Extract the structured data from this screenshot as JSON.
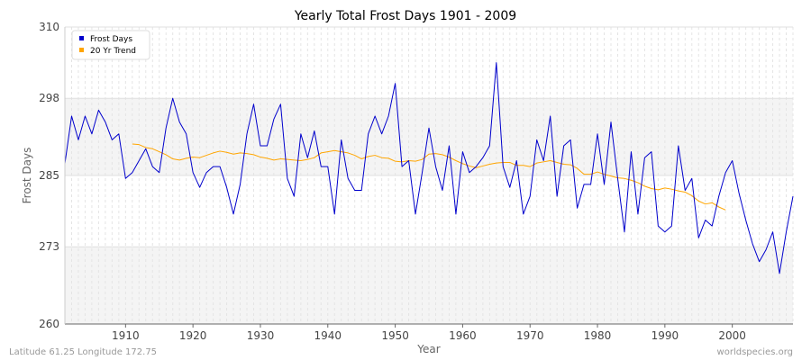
{
  "chart_data": {
    "type": "line",
    "title": "Yearly Total Frost Days 1901 - 2009",
    "xlabel": "Year",
    "ylabel": "Frost Days",
    "xlim": [
      1901,
      2009
    ],
    "ylim": [
      260,
      310
    ],
    "xticks": [
      1910,
      1920,
      1930,
      1940,
      1950,
      1960,
      1970,
      1980,
      1990,
      2000
    ],
    "yticks": [
      260,
      273,
      285,
      298,
      310
    ],
    "grid": true,
    "legend_position": "top-left",
    "series": [
      {
        "name": "Frost Days",
        "color": "#0000cc",
        "x": [
          1901,
          1902,
          1903,
          1904,
          1905,
          1906,
          1907,
          1908,
          1909,
          1910,
          1911,
          1912,
          1913,
          1914,
          1915,
          1916,
          1917,
          1918,
          1919,
          1920,
          1921,
          1922,
          1923,
          1924,
          1925,
          1926,
          1927,
          1928,
          1929,
          1930,
          1931,
          1932,
          1933,
          1934,
          1935,
          1936,
          1937,
          1938,
          1939,
          1940,
          1941,
          1942,
          1943,
          1944,
          1945,
          1946,
          1947,
          1948,
          1949,
          1950,
          1951,
          1952,
          1953,
          1954,
          1955,
          1956,
          1957,
          1958,
          1959,
          1960,
          1961,
          1962,
          1963,
          1964,
          1965,
          1966,
          1967,
          1968,
          1969,
          1970,
          1971,
          1972,
          1973,
          1974,
          1975,
          1976,
          1977,
          1978,
          1979,
          1980,
          1981,
          1982,
          1983,
          1984,
          1985,
          1986,
          1987,
          1988,
          1989,
          1990,
          1991,
          1992,
          1993,
          1994,
          1995,
          1996,
          1997,
          1998,
          1999,
          2000,
          2001,
          2002,
          2003,
          2004,
          2005,
          2006,
          2007,
          2008,
          2009
        ],
        "y": [
          287,
          295,
          291,
          295,
          292,
          296,
          294,
          291,
          292,
          284.5,
          285.5,
          287.5,
          289.5,
          286.5,
          285.5,
          293,
          298,
          294,
          292,
          285.5,
          283,
          285.5,
          286.5,
          286.5,
          283,
          278.5,
          283.5,
          292,
          297,
          290,
          290,
          294.5,
          297,
          284.5,
          281.5,
          292,
          288,
          292.5,
          286.5,
          286.5,
          278.5,
          291,
          284.5,
          282.5,
          282.5,
          292,
          295,
          292,
          295,
          300.5,
          286.5,
          287.5,
          278.5,
          285.5,
          293,
          286.5,
          282.5,
          290,
          278.5,
          289,
          285.5,
          286.5,
          288,
          290,
          304,
          286.5,
          283,
          287.5,
          278.5,
          281.5,
          291,
          287.5,
          295,
          281.5,
          290,
          291,
          279.5,
          283.5,
          283.5,
          292,
          283.5,
          294,
          284.5,
          275.5,
          289,
          278.5,
          288,
          289,
          276.5,
          275.5,
          276.5,
          290,
          282.5,
          284.5,
          274.5,
          277.5,
          276.5,
          281.5,
          285.5,
          287.5,
          282,
          277.5,
          273.5,
          270.5,
          272.5,
          275.5,
          268.5,
          275.5,
          281.5
        ]
      },
      {
        "name": "20 Yr Trend",
        "color": "#ffa500",
        "x": [
          1911,
          1912,
          1913,
          1914,
          1915,
          1916,
          1917,
          1918,
          1919,
          1920,
          1921,
          1922,
          1923,
          1924,
          1925,
          1926,
          1927,
          1928,
          1929,
          1930,
          1931,
          1932,
          1933,
          1934,
          1935,
          1936,
          1937,
          1938,
          1939,
          1940,
          1941,
          1942,
          1943,
          1944,
          1945,
          1946,
          1947,
          1948,
          1949,
          1950,
          1951,
          1952,
          1953,
          1954,
          1955,
          1956,
          1957,
          1958,
          1959,
          1960,
          1961,
          1962,
          1963,
          1964,
          1965,
          1966,
          1967,
          1968,
          1969,
          1970,
          1971,
          1972,
          1973,
          1974,
          1975,
          1976,
          1977,
          1978,
          1979,
          1980,
          1981,
          1982,
          1983,
          1984,
          1985,
          1986,
          1987,
          1988,
          1989,
          1990,
          1991,
          1992,
          1993,
          1994,
          1995,
          1996,
          1997,
          1998,
          1999
        ],
        "y": [
          290.3,
          290.2,
          289.7,
          289.5,
          289,
          288.5,
          287.8,
          287.6,
          287.9,
          288.1,
          288,
          288.4,
          288.8,
          289.1,
          288.9,
          288.6,
          288.8,
          288.7,
          288.5,
          288.1,
          287.9,
          287.6,
          287.8,
          287.7,
          287.6,
          287.5,
          287.7,
          288,
          288.8,
          289,
          289.2,
          289,
          288.8,
          288.4,
          287.8,
          288.2,
          288.4,
          288,
          287.9,
          287.4,
          287.3,
          287.5,
          287.4,
          287.7,
          288.6,
          288.7,
          288.5,
          288.1,
          287.5,
          287,
          286.6,
          286.3,
          286.6,
          286.9,
          287.1,
          287.2,
          287.2,
          286.7,
          286.7,
          286.5,
          287.1,
          287.3,
          287.5,
          287.2,
          286.9,
          286.8,
          286.2,
          285.2,
          285.2,
          285.6,
          285.2,
          284.9,
          284.6,
          284.5,
          284.2,
          283.8,
          283.2,
          282.8,
          282.6,
          282.9,
          282.7,
          282.4,
          282.2,
          281.6,
          280.7,
          280.2,
          280.4,
          279.7,
          279.2
        ]
      }
    ]
  },
  "footer": {
    "location": "Latitude 61.25 Longitude 172.75",
    "source": "worldspecies.org"
  }
}
